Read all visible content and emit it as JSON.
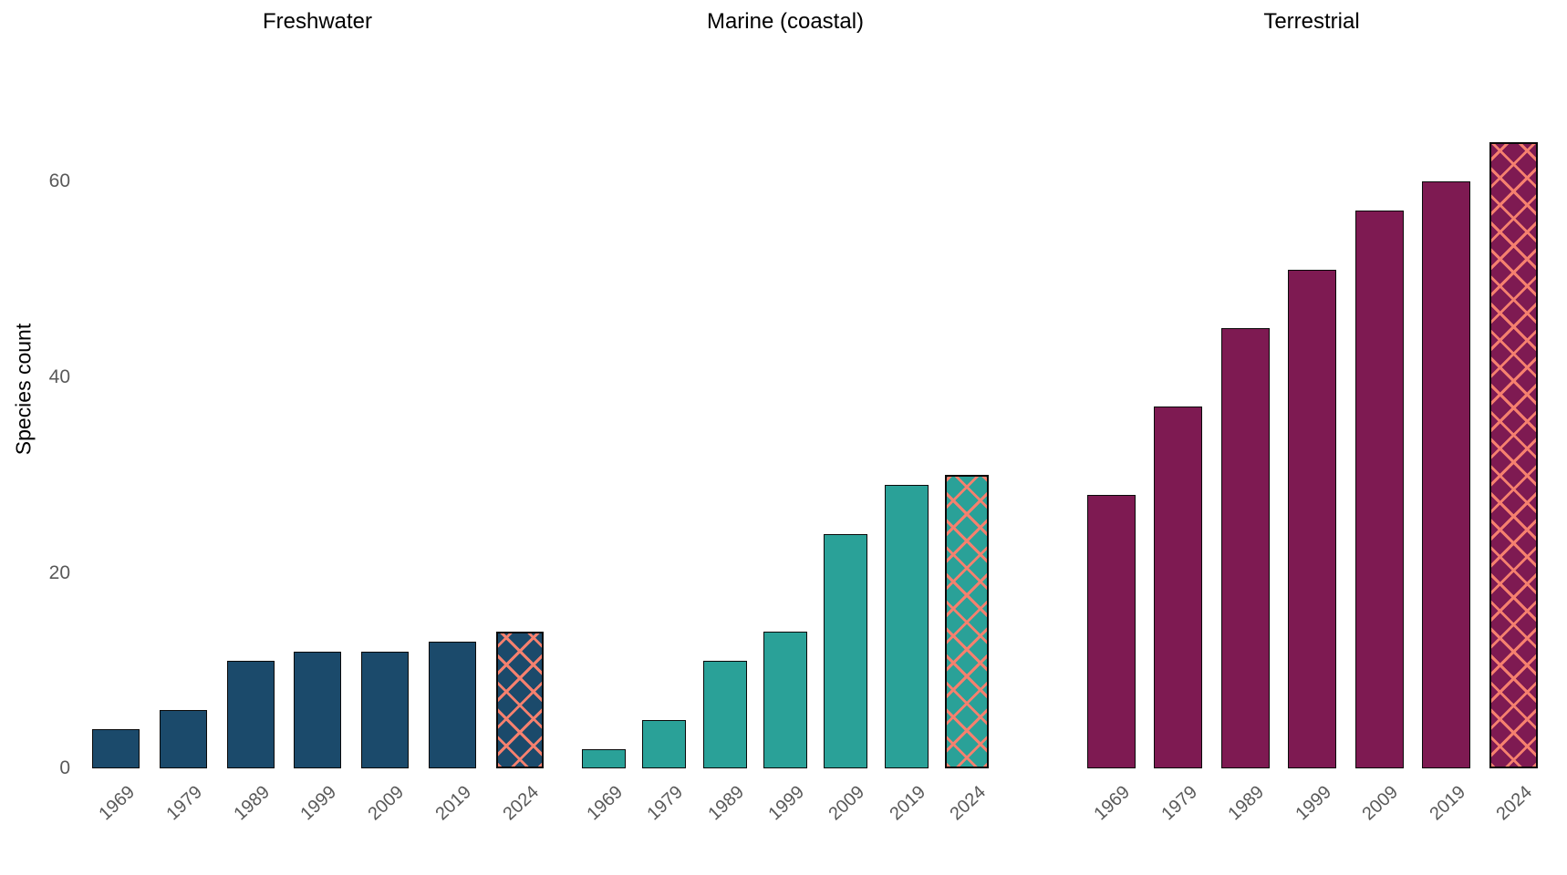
{
  "chart_data": {
    "type": "bar",
    "faceted": true,
    "categories": [
      "1969",
      "1979",
      "1989",
      "1999",
      "2009",
      "2019",
      "2024"
    ],
    "series": [
      {
        "name": "Freshwater",
        "color": "#1b4a6b",
        "values": [
          4,
          6,
          11,
          12,
          12,
          13,
          14
        ]
      },
      {
        "name": "Marine (coastal)",
        "color": "#2aa198",
        "values": [
          2,
          5,
          11,
          14,
          24,
          29,
          30
        ]
      },
      {
        "name": "Terrestrial",
        "color": "#7e1a52",
        "values": [
          28,
          37,
          45,
          51,
          57,
          60,
          64
        ]
      }
    ],
    "highlight": {
      "category": "2024",
      "pattern": "crosshatch",
      "hatch_color": "#f5806e"
    },
    "xlabel": "",
    "ylabel": "Species count",
    "yticks": [
      0,
      20,
      40,
      60
    ],
    "ylim": [
      0,
      66
    ],
    "grid": false,
    "legend": false,
    "bar_edge_color": "#0a0a0a",
    "tick_label_color": "#595959",
    "title_color": "#000000"
  }
}
